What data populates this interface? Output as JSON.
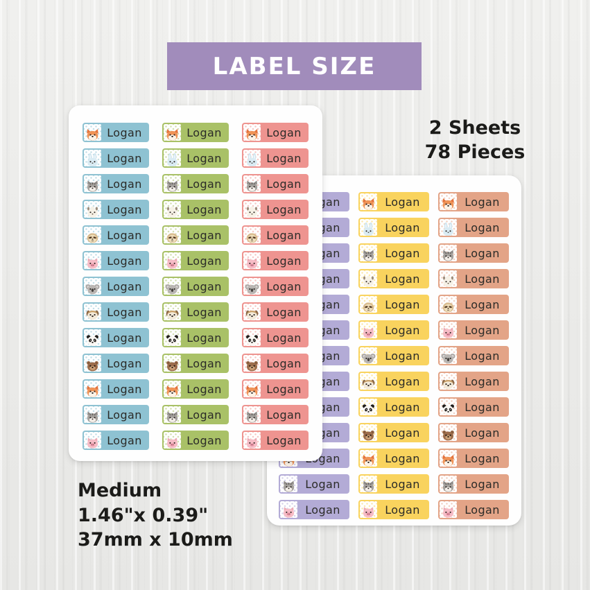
{
  "banner": {
    "label": "LABEL SIZE",
    "bg": "#a18cbb",
    "text_color": "#ffffff"
  },
  "counts": {
    "sheets": "2 Sheets",
    "pieces": "78 Pieces"
  },
  "size": {
    "name": "Medium",
    "inches": "1.46\"x 0.39\"",
    "mm": "37mm x 10mm"
  },
  "label_text": "Logan",
  "rows_per_sheet": 13,
  "animal_sequence": [
    "fox",
    "bunny",
    "cat",
    "llama",
    "sloth",
    "pig",
    "koala",
    "dog",
    "panda",
    "bear",
    "fox",
    "cat",
    "pig"
  ],
  "sheets": [
    {
      "name": "front-sheet",
      "column_colors": [
        "#8ec2d2",
        "#a9c167",
        "#ee9490"
      ]
    },
    {
      "name": "back-sheet",
      "column_colors": [
        "#b3abd6",
        "#f9d35e",
        "#e3a487"
      ]
    }
  ],
  "colors": {
    "text_dark": "#1b1b19",
    "label_text_color": "#2b2b28",
    "sheet_bg": "#ffffff"
  }
}
